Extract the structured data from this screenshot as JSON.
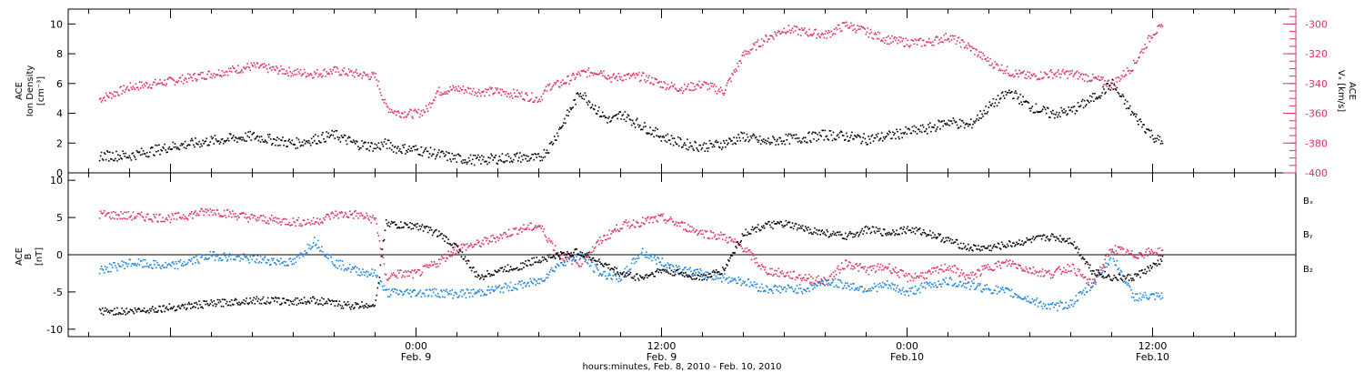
{
  "chart_data": [
    {
      "type": "scatter",
      "panel": "top",
      "ylabel_left": [
        "ACE",
        "Ion Density",
        "[cm⁻³]"
      ],
      "ylabel_right": [
        "ACE",
        "Vₓ [km/s]"
      ],
      "ylim": [
        0,
        11
      ],
      "yticks": [
        "0",
        "2",
        "4",
        "6",
        "8",
        "10"
      ],
      "ylim_right": [
        -400,
        -290
      ],
      "yticks_right": [
        "-400",
        "-380",
        "-360",
        "-340",
        "-320",
        "-300"
      ],
      "colors": {
        "density": "#000000",
        "vx": "#e0305c"
      },
      "series": [
        {
          "key": "density",
          "color": "#000000",
          "x": [
            -15.5,
            -14,
            -12,
            -10,
            -8,
            -6,
            -5,
            -4,
            -3,
            -2,
            -1.5,
            -1,
            0,
            1,
            2,
            3,
            4,
            5,
            6,
            6.5,
            7,
            8,
            9,
            9.5,
            10,
            11,
            12,
            13,
            14,
            15,
            16,
            17,
            18,
            19,
            20,
            21,
            22,
            23,
            24,
            25,
            26,
            27,
            28,
            29,
            30,
            31,
            32,
            33,
            34,
            35,
            36,
            36.5
          ],
          "y": [
            1.2,
            1.2,
            1.8,
            2.2,
            2.5,
            2.0,
            2.3,
            2.6,
            2.0,
            1.8,
            2.0,
            1.7,
            1.6,
            1.3,
            1.0,
            0.9,
            1.0,
            1.1,
            1.0,
            1.8,
            3.0,
            5.5,
            4.0,
            3.5,
            4.0,
            3.2,
            2.5,
            2.0,
            1.8,
            2.0,
            2.5,
            2.1,
            2.3,
            2.4,
            2.6,
            2.5,
            2.3,
            2.5,
            2.8,
            3.0,
            3.5,
            3.2,
            4.5,
            5.5,
            4.5,
            4.0,
            4.2,
            5.0,
            6.0,
            4.0,
            2.5,
            2.0
          ]
        },
        {
          "key": "vx",
          "color": "#e0305c",
          "x": [
            -15.5,
            -14,
            -12,
            -10,
            -8,
            -6,
            -5,
            -4,
            -3,
            -2,
            -1.5,
            -1,
            0,
            0.5,
            1,
            2,
            3,
            4,
            5,
            6,
            6.5,
            7,
            8,
            9,
            9.5,
            10,
            11,
            12,
            13,
            14,
            15,
            16,
            17,
            18,
            19,
            20,
            21,
            22,
            23,
            24,
            25,
            26,
            27,
            28,
            29,
            30,
            31,
            32,
            33,
            34,
            35,
            36,
            36.5
          ],
          "y": [
            -350,
            -342,
            -338,
            -333,
            -328,
            -332,
            -333,
            -331,
            -333,
            -335,
            -355,
            -359,
            -360,
            -357,
            -345,
            -343,
            -345,
            -345,
            -347,
            -350,
            -341,
            -340,
            -333,
            -331,
            -336,
            -335,
            -335,
            -340,
            -343,
            -340,
            -345,
            -320,
            -310,
            -303,
            -305,
            -307,
            -300,
            -305,
            -310,
            -312,
            -312,
            -308,
            -315,
            -325,
            -332,
            -335,
            -333,
            -333,
            -336,
            -340,
            -328,
            -305,
            -302
          ]
        }
      ]
    },
    {
      "type": "scatter",
      "panel": "bottom",
      "ylabel_left": [
        "ACE",
        "B",
        "[nT]"
      ],
      "ylim": [
        -11,
        11
      ],
      "yticks": [
        "-10",
        "-5",
        "0",
        "5",
        "10"
      ],
      "legend": [
        "Bₓ",
        "Bᵧ",
        "B₂"
      ],
      "colors": {
        "bx": "#000000",
        "by": "#1a82dc",
        "bz": "#e0305c"
      },
      "series": [
        {
          "key": "bx",
          "color": "#000000",
          "x": [
            -15.5,
            -14,
            -12,
            -10,
            -8,
            -6,
            -5,
            -4,
            -3,
            -2,
            -1.5,
            -1,
            0,
            1,
            2,
            3,
            4,
            5,
            6,
            7,
            8,
            9,
            10,
            11,
            12,
            13,
            14,
            15,
            16,
            17,
            18,
            19,
            20,
            21,
            22,
            23,
            24,
            25,
            26,
            27,
            28,
            29,
            30,
            31,
            32,
            33,
            34,
            35,
            36,
            36.5
          ],
          "y": [
            -7.5,
            -7.5,
            -7.0,
            -6.5,
            -6.0,
            -6.2,
            -6.0,
            -6.5,
            -6.8,
            -6.5,
            4.5,
            4.0,
            4.0,
            3.0,
            1.0,
            -3.0,
            -2.0,
            -1.5,
            -0.5,
            0.0,
            0.5,
            -1.0,
            -2.5,
            -3.0,
            -2.0,
            -2.5,
            -3.0,
            -2.0,
            3.0,
            4.0,
            4.2,
            3.5,
            3.0,
            2.5,
            3.5,
            3.0,
            3.5,
            3.0,
            2.0,
            1.0,
            1.0,
            1.5,
            2.0,
            2.5,
            2.0,
            -2.0,
            -3.0,
            -3.0,
            -1.5,
            -0.5
          ]
        },
        {
          "key": "by",
          "color": "#1a82dc",
          "x": [
            -15.5,
            -14,
            -12,
            -10,
            -8,
            -6,
            -5,
            -4,
            -3,
            -2,
            -1.5,
            -1,
            0,
            1,
            2,
            3,
            4,
            5,
            6,
            7,
            8,
            9,
            10,
            11,
            12,
            13,
            14,
            15,
            16,
            17,
            18,
            19,
            20,
            21,
            22,
            23,
            24,
            25,
            26,
            27,
            28,
            29,
            30,
            31,
            32,
            33,
            34,
            35,
            36,
            36.5
          ],
          "y": [
            -2.0,
            -1.0,
            -1.5,
            0.0,
            -0.5,
            -1.0,
            2.0,
            -1.0,
            -2.0,
            -2.5,
            -5.0,
            -5.0,
            -5.0,
            -5.0,
            -5.2,
            -5.0,
            -4.5,
            -4.0,
            -3.5,
            -1.0,
            0.0,
            -2.5,
            -3.0,
            0.5,
            -1.0,
            -2.0,
            -2.5,
            -3.0,
            -3.5,
            -4.5,
            -4.5,
            -4.5,
            -3.5,
            -4.0,
            -4.5,
            -4.0,
            -5.0,
            -4.0,
            -3.5,
            -4.0,
            -4.5,
            -5.0,
            -6.0,
            -7.0,
            -6.5,
            -4.0,
            0.0,
            -5.5,
            -5.6,
            -5.6
          ]
        },
        {
          "key": "bz",
          "color": "#e0305c",
          "x": [
            -15.5,
            -14,
            -12,
            -10,
            -8,
            -6,
            -5,
            -4,
            -3,
            -2,
            -1.5,
            -1,
            0,
            1,
            2,
            3,
            4,
            5,
            6,
            7,
            8,
            9,
            10,
            11,
            12,
            13,
            14,
            15,
            16,
            17,
            18,
            19,
            20,
            21,
            22,
            23,
            24,
            25,
            26,
            27,
            28,
            29,
            30,
            31,
            32,
            33,
            34,
            35,
            36,
            36.5
          ],
          "y": [
            5.5,
            5.3,
            5.0,
            6.0,
            5.0,
            4.5,
            4.5,
            5.5,
            5.5,
            4.8,
            -3.0,
            -2.5,
            -2.5,
            -1.0,
            1.0,
            1.5,
            2.5,
            3.5,
            4.0,
            0.0,
            -1.0,
            2.0,
            4.0,
            4.5,
            5.0,
            4.0,
            3.0,
            2.5,
            1.0,
            -2.0,
            -2.5,
            -3.0,
            -3.5,
            -1.0,
            -2.0,
            -1.5,
            -3.0,
            -2.5,
            -1.5,
            -3.0,
            -1.5,
            -1.0,
            -2.0,
            -2.5,
            -1.5,
            -4.0,
            1.0,
            0.0,
            0.5,
            0.5
          ]
        }
      ]
    }
  ],
  "x_axis": {
    "range_hours": [
      -17,
      43
    ],
    "ticks": [
      {
        "hour": 0,
        "time": "0:00",
        "date": "Feb. 9"
      },
      {
        "hour": 12,
        "time": "12:00",
        "date": "Feb. 9"
      },
      {
        "hour": 24,
        "time": "0:00",
        "date": "Feb.10"
      },
      {
        "hour": 36,
        "time": "12:00",
        "date": "Feb.10"
      }
    ],
    "xlabel": "hours:minutes, Feb.  8, 2010 - Feb. 10, 2010"
  }
}
